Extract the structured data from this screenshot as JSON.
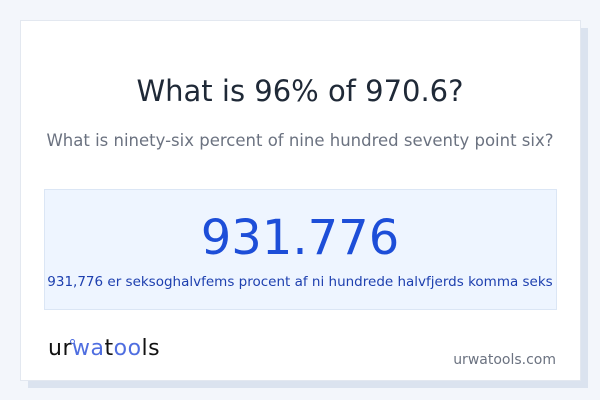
{
  "question": {
    "title": "What is 96% of 970.6?",
    "subtitle": "What is ninety-six percent of nine hundred seventy point six?"
  },
  "answer": {
    "value": "931.776",
    "words": "931,776 er seksoghalvfems procent af ni hundrede halvfjerds komma seks"
  },
  "footer": {
    "logo": "urwatools",
    "logo_parts": [
      "ur",
      "wa",
      "t",
      "oo",
      "ls"
    ],
    "site": "urwatools.com"
  },
  "colors": {
    "accent": "#1d4ed8",
    "logo_accent": "#4f6ee0",
    "result_bg": "#eef5ff"
  }
}
